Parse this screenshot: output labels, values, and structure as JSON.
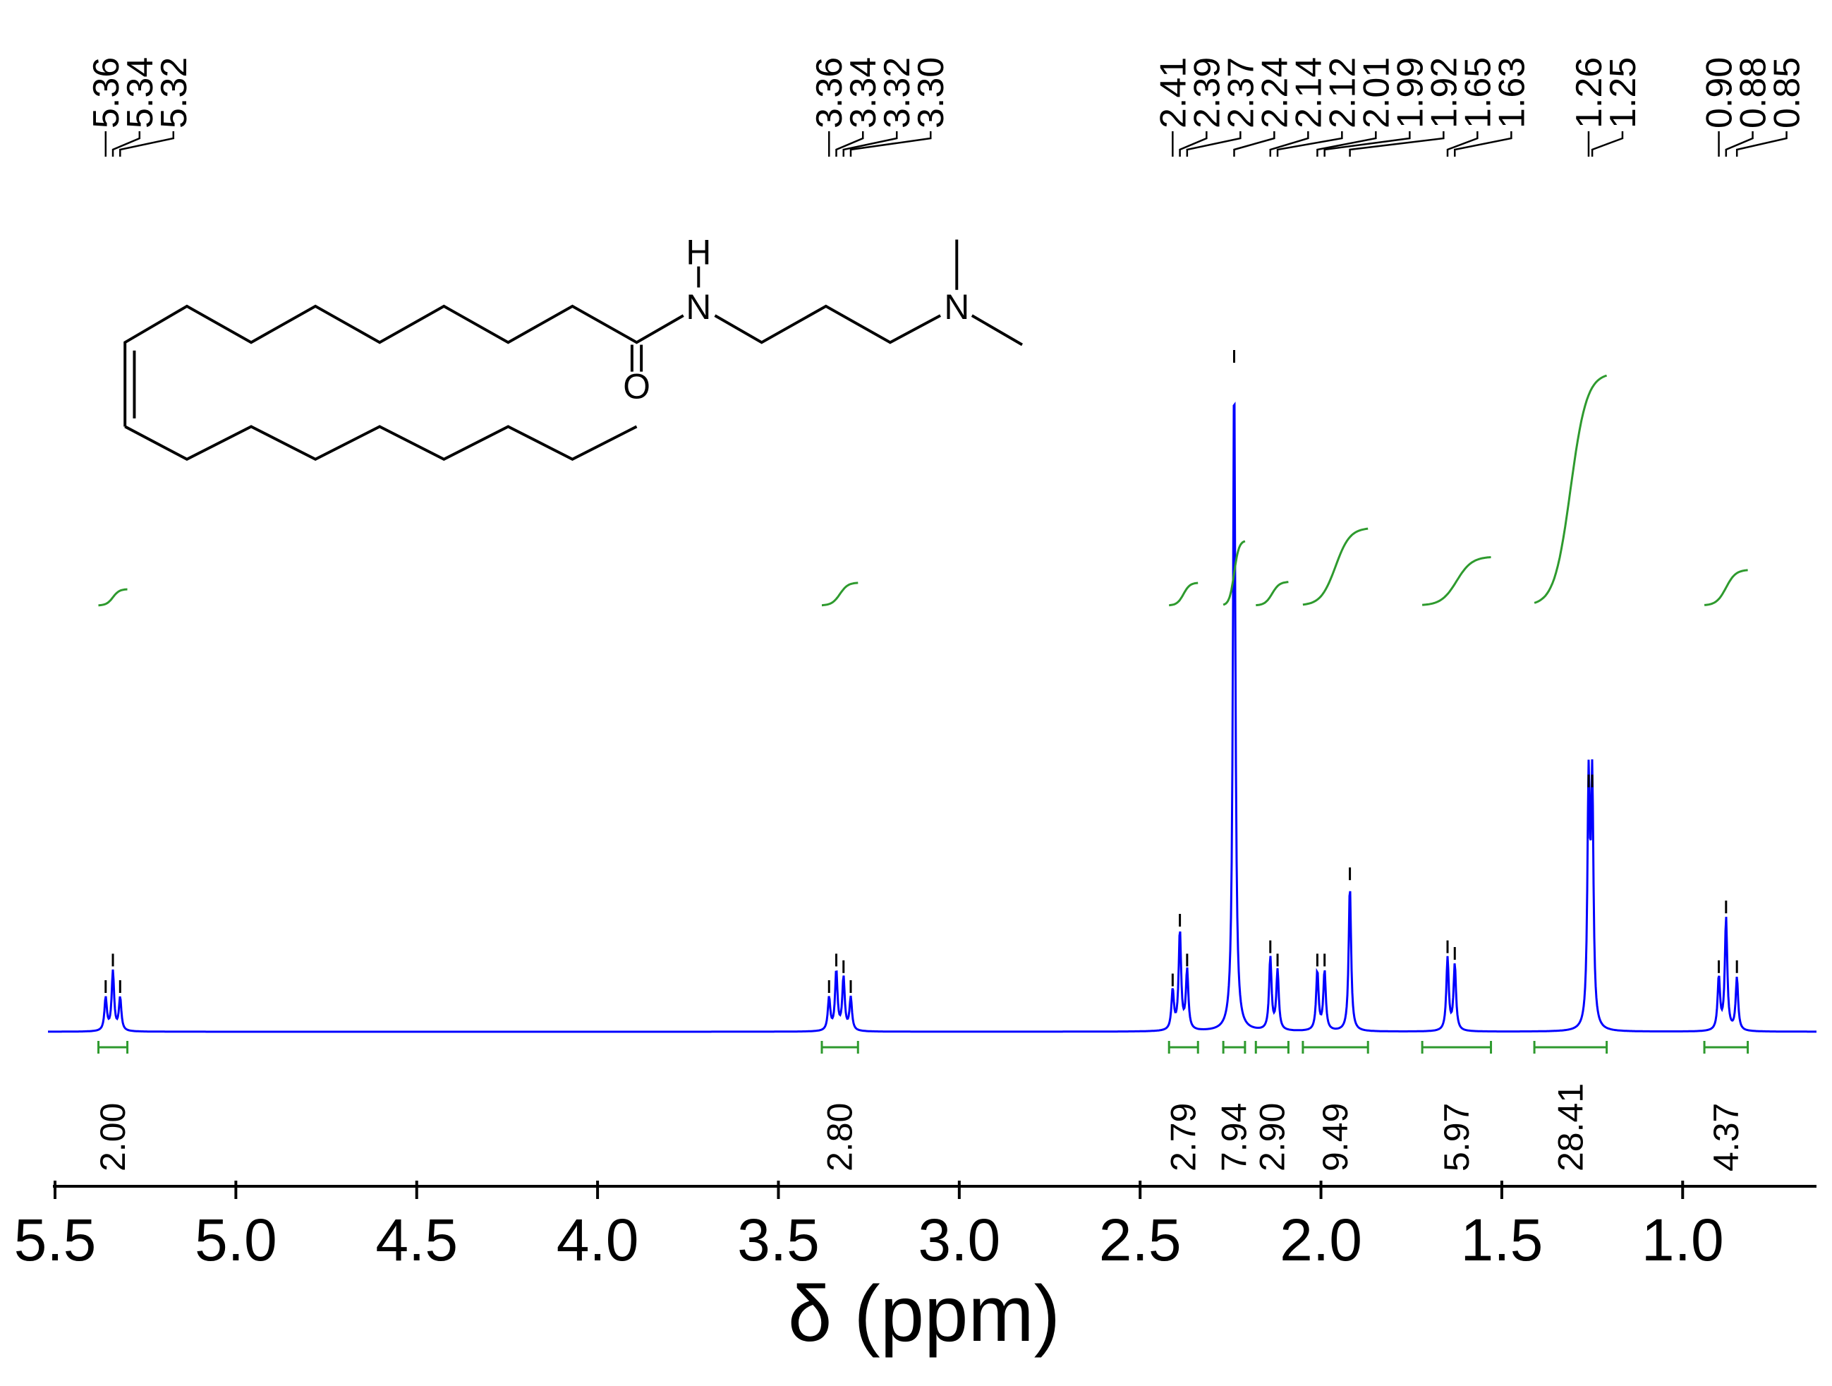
{
  "chart_data": {
    "type": "nmr",
    "xlabel": "δ (ppm)",
    "xlim": [
      5.5,
      0.63
    ],
    "xticks": [
      5.5,
      {
        "value": 5,
        "label": "5.0"
      },
      4.5,
      {
        "value": 4,
        "label": "4.0"
      },
      3.5,
      {
        "value": 3,
        "label": "3.0"
      },
      2.5,
      {
        "value": 2,
        "label": "2.0"
      },
      1.5,
      {
        "value": 1,
        "label": "1.0"
      }
    ],
    "color": "#0000ff",
    "integral_color": "#2e9a2e",
    "peaks": [
      5.36,
      5.34,
      5.32,
      3.36,
      3.34,
      3.32,
      3.3,
      2.41,
      2.39,
      2.37,
      2.24,
      2.14,
      2.12,
      2.01,
      1.99,
      1.92,
      1.65,
      1.63,
      1.26,
      1.25,
      0.9,
      0.88,
      0.85
    ],
    "peak_labels": [
      "5.36",
      "5.34",
      "5.32",
      "3.36",
      "3.34",
      "3.32",
      "3.30",
      "2.41",
      "2.39",
      "2.37",
      "2.24",
      "2.14",
      "2.12",
      "2.01",
      "1.99",
      "1.92",
      "1.65",
      "1.63",
      "1.26",
      "1.25",
      "0.90",
      "0.88",
      "0.85"
    ],
    "heights": [
      5,
      9,
      5,
      5,
      9,
      8,
      5,
      6,
      15,
      9,
      100,
      11,
      9,
      9,
      9,
      22,
      11,
      10,
      36,
      36,
      8,
      17,
      8
    ],
    "integrals": {
      "ranges": [
        [
          5.38,
          5.3
        ],
        [
          3.38,
          3.28
        ],
        [
          2.42,
          2.34
        ],
        [
          2.27,
          2.21
        ],
        [
          2.18,
          2.09
        ],
        [
          2.05,
          1.87
        ],
        [
          1.72,
          1.53
        ],
        [
          1.41,
          1.21
        ],
        [
          0.94,
          0.82
        ]
      ],
      "values": [
        2,
        2.8,
        2.79,
        7.94,
        2.9,
        9.49,
        5.97,
        28.41,
        4.37
      ],
      "value_labels": [
        "2.00",
        "2.80",
        "2.79",
        "7.94",
        "2.90",
        "9.49",
        "5.97",
        "28.41",
        "4.37"
      ]
    }
  },
  "structure": {
    "atoms": [
      "H",
      "N",
      "O",
      "N"
    ]
  }
}
